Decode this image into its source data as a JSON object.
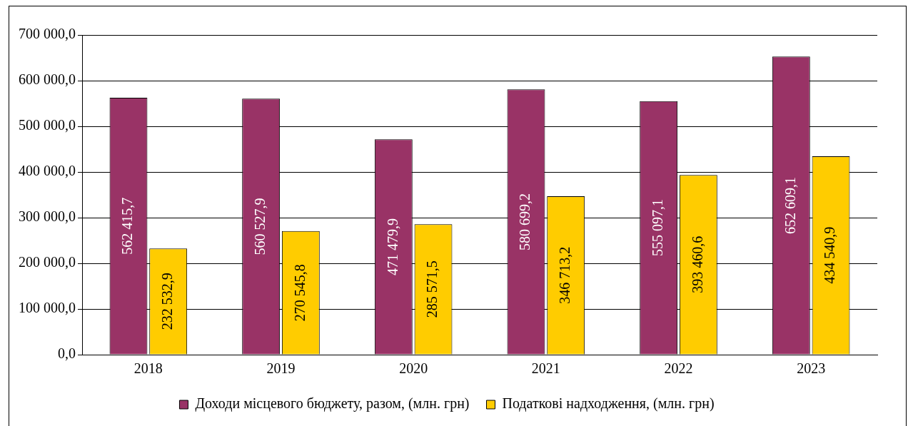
{
  "chart_data": {
    "type": "bar",
    "categories": [
      "2018",
      "2019",
      "2020",
      "2021",
      "2022",
      "2023"
    ],
    "series": [
      {
        "name": "Доходи місцевого бюджету, разом, (млн. грн)",
        "color": "#993366",
        "values": [
          562415.7,
          560527.9,
          471479.9,
          580699.2,
          555097.1,
          652609.1
        ],
        "value_labels": [
          "562 415,7",
          "560 527,9",
          "471 479,9",
          "580 699,2",
          "555 097,1",
          "652 609,1"
        ]
      },
      {
        "name": "Податкові надходження, (млн. грн)",
        "color": "#ffcc00",
        "values": [
          232532.9,
          270545.8,
          285571.5,
          346713.2,
          393460.6,
          434540.9
        ],
        "value_labels": [
          "232 532,9",
          "270 545,8",
          "285 571,5",
          "346 713,2",
          "393 460,6",
          "434 540,9"
        ]
      }
    ],
    "ylim": [
      0,
      700000
    ],
    "yticks": [
      {
        "value": 0,
        "label": "0,0"
      },
      {
        "value": 100000,
        "label": "100 000,0"
      },
      {
        "value": 200000,
        "label": "200 000,0"
      },
      {
        "value": 300000,
        "label": "300 000,0"
      },
      {
        "value": 400000,
        "label": "400 000,0"
      },
      {
        "value": 500000,
        "label": "500 000,0"
      },
      {
        "value": 600000,
        "label": "600 000,0"
      },
      {
        "value": 700000,
        "label": "700 000,0"
      }
    ],
    "grid": "y",
    "legend": "bottom"
  }
}
